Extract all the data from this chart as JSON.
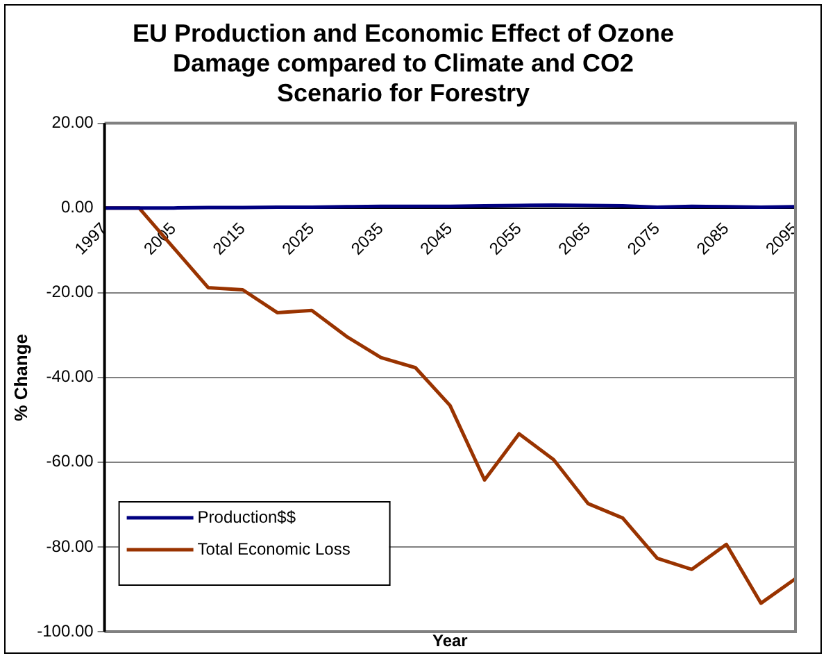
{
  "chart_data": {
    "type": "line",
    "title": "EU Production and Economic Effect of Ozone Damage compared to Climate and CO2 Scenario for Forestry",
    "xlabel": "Year",
    "ylabel": "% Change",
    "categories": [
      "1997",
      null,
      "2005",
      null,
      "2015",
      null,
      "2025",
      null,
      "2035",
      null,
      "2045",
      null,
      "2055",
      null,
      "2065",
      null,
      "2075",
      null,
      "2085",
      null,
      "2095"
    ],
    "series": [
      {
        "name": "Production$$",
        "color": "#000080",
        "values": [
          0,
          0,
          0,
          0.1,
          0.1,
          0.2,
          0.2,
          0.3,
          0.4,
          0.4,
          0.4,
          0.5,
          0.6,
          0.7,
          0.6,
          0.5,
          0.2,
          0.4,
          0.3,
          0.2,
          0.3
        ]
      },
      {
        "name": "Total Economic Loss",
        "color": "#993300",
        "values": [
          0,
          0,
          -9.4,
          -18.8,
          -19.3,
          -24.7,
          -24.2,
          -30.3,
          -35.3,
          -37.7,
          -46.6,
          -64.2,
          -53.3,
          -59.4,
          -69.8,
          -73.2,
          -82.7,
          -85.3,
          -79.4,
          -93.3,
          -87.5
        ]
      }
    ],
    "ylim": [
      -100,
      20
    ],
    "yticks": [
      {
        "value": -100,
        "label": "-100.00"
      },
      {
        "value": -80,
        "label": "-80.00"
      },
      {
        "value": -60,
        "label": "-60.00"
      },
      {
        "value": -40,
        "label": "-40.00"
      },
      {
        "value": -20,
        "label": "-20.00"
      },
      {
        "value": 0,
        "label": "0.00"
      },
      {
        "value": 20,
        "label": "20.00"
      }
    ],
    "grid": "y",
    "legend": "bottom left",
    "marker": "none",
    "line_style": "solid"
  }
}
